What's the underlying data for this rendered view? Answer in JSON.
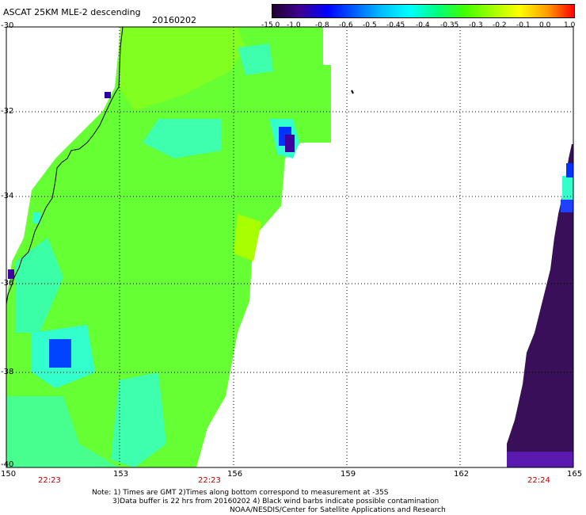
{
  "header": {
    "title": "ASCAT 25KM MLE-2 descending",
    "date": "20160202"
  },
  "colorbar": {
    "labels": [
      "-15.0",
      "-1.0",
      "-0.8",
      "-0.6",
      "-0.5",
      "-0.45",
      "-0.4",
      "-0.35",
      "-0.3",
      "-0.2",
      "-0.1",
      "0.0",
      "1.0"
    ]
  },
  "axes": {
    "lat_labels": [
      "-30",
      "-32",
      "-34",
      "-36",
      "-38",
      "-40"
    ],
    "lon_labels": [
      "150",
      "153",
      "156",
      "159",
      "162",
      "165"
    ]
  },
  "times": [
    "22:23",
    "22:23",
    "22:24"
  ],
  "notes": {
    "line1": "Note: 1) Times are GMT 2)Times along bottom correspond to measurement at -35S",
    "line2": "3)Data buffer is 22 hrs from 20160202 4) Black wind barbs indicate possible contamination",
    "line3": "NOAA/NESDIS/Center for Satellite Applications and Research"
  },
  "colors": {
    "swath_green": "#66ff33",
    "swath_cyan": "#33ffcc",
    "swath_blue": "#0033ff",
    "swath_purple": "#3a0f5a",
    "time_red": "#c00000"
  }
}
